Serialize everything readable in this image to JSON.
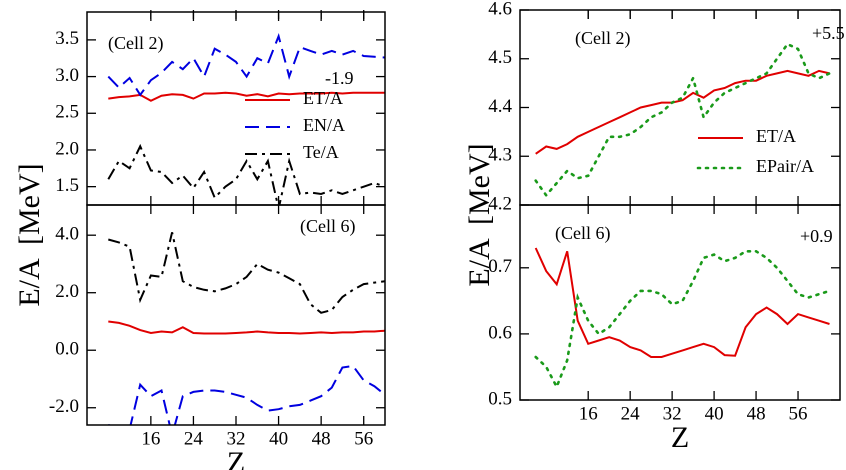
{
  "chart_data": [
    {
      "type": "line",
      "ylabel": "E/A  [MeV]",
      "annotations": [
        "(Cell 2)",
        "-1.9"
      ],
      "x": [
        8,
        10,
        12,
        14,
        16,
        18,
        20,
        22,
        24,
        26,
        28,
        30,
        32,
        34,
        36,
        38,
        40,
        42,
        44,
        46,
        48,
        50,
        52,
        54,
        56,
        58,
        60
      ],
      "xlim": [
        4,
        60
      ],
      "ylim": [
        1.25,
        3.88
      ],
      "yticks": [
        1.5,
        {
          "value": 2,
          "label": "2.0"
        },
        2.5,
        {
          "value": 3,
          "label": "3.0"
        },
        3.5
      ],
      "series": [
        {
          "name": "ET/A",
          "color": "#e00000",
          "line_style": "solid",
          "values": [
            2.7,
            2.72,
            2.73,
            2.75,
            2.67,
            2.74,
            2.76,
            2.75,
            2.7,
            2.77,
            2.77,
            2.78,
            2.77,
            2.74,
            2.76,
            2.73,
            2.77,
            2.76,
            2.77,
            2.77,
            2.77,
            2.78,
            2.77,
            2.78,
            2.78,
            2.78,
            2.78
          ]
        },
        {
          "name": "EN/A",
          "color": "#0000e0",
          "line_style": "dashed",
          "values": [
            3.0,
            2.85,
            2.98,
            2.75,
            2.95,
            3.05,
            3.2,
            3.1,
            3.25,
            3.0,
            3.38,
            3.3,
            3.2,
            3.0,
            3.25,
            3.18,
            3.55,
            3.0,
            3.4,
            3.35,
            3.3,
            3.35,
            3.3,
            3.35,
            3.28,
            3.27,
            3.26
          ]
        },
        {
          "name": "Te/A",
          "color": "#000000",
          "line_style": "dashdot",
          "values": [
            1.6,
            1.85,
            1.75,
            2.05,
            1.72,
            1.7,
            1.55,
            1.65,
            1.48,
            1.7,
            1.35,
            1.5,
            1.6,
            1.85,
            1.6,
            1.85,
            1.2,
            1.85,
            1.4,
            1.42,
            1.4,
            1.45,
            1.4,
            1.45,
            1.5,
            1.55,
            1.5
          ]
        }
      ]
    },
    {
      "type": "line",
      "xlabel": "Z",
      "annotations": [
        "(Cell 6)"
      ],
      "x": [
        8,
        10,
        12,
        14,
        16,
        18,
        20,
        22,
        24,
        26,
        28,
        30,
        32,
        34,
        36,
        38,
        40,
        42,
        44,
        46,
        48,
        50,
        52,
        54,
        56,
        58,
        60
      ],
      "xlim": [
        4,
        60
      ],
      "ylim": [
        -2.6,
        5.05
      ],
      "xticks": [
        16,
        24,
        32,
        40,
        48,
        56
      ],
      "yticks": [
        {
          "value": -2,
          "label": "-2.0"
        },
        {
          "value": 0,
          "label": "0.0"
        },
        {
          "value": 2,
          "label": "2.0"
        },
        {
          "value": 4,
          "label": "4.0"
        }
      ],
      "series": [
        {
          "color": "#e00000",
          "line_style": "solid",
          "values": [
            1.0,
            0.95,
            0.85,
            0.7,
            0.6,
            0.65,
            0.62,
            0.8,
            0.6,
            0.58,
            0.58,
            0.58,
            0.6,
            0.62,
            0.65,
            0.62,
            0.6,
            0.6,
            0.58,
            0.6,
            0.62,
            0.6,
            0.62,
            0.62,
            0.65,
            0.65,
            0.68
          ]
        },
        {
          "color": "#0000e0",
          "line_style": "dashed",
          "values": [
            -2.6,
            -2.7,
            -2.75,
            -1.2,
            -1.6,
            -1.4,
            -2.95,
            -1.6,
            -1.45,
            -1.4,
            -1.4,
            -1.45,
            -1.55,
            -1.65,
            -1.9,
            -2.1,
            -2.05,
            -1.95,
            -1.9,
            -1.75,
            -1.6,
            -1.3,
            -0.6,
            -0.55,
            -1.05,
            -1.25,
            -1.55
          ]
        },
        {
          "color": "#000000",
          "line_style": "dashdot",
          "values": [
            3.85,
            3.75,
            3.6,
            1.75,
            2.6,
            2.55,
            4.1,
            2.4,
            2.2,
            2.1,
            2.05,
            2.15,
            2.3,
            2.55,
            3.0,
            2.8,
            2.7,
            2.5,
            2.3,
            1.6,
            1.3,
            1.4,
            1.85,
            2.1,
            2.3,
            2.35,
            2.4
          ]
        }
      ]
    },
    {
      "type": "line",
      "ylabel": "E/A  [MeV]",
      "annotations": [
        "(Cell 2)",
        "+5.5"
      ],
      "x": [
        6,
        8,
        10,
        12,
        14,
        16,
        18,
        20,
        22,
        24,
        26,
        28,
        30,
        32,
        34,
        36,
        38,
        40,
        42,
        44,
        46,
        48,
        50,
        52,
        54,
        56,
        58,
        60,
        62
      ],
      "xlim": [
        3,
        64
      ],
      "ylim": [
        4.2,
        4.6
      ],
      "yticks": [
        4.2,
        4.3,
        4.4,
        4.5,
        4.6
      ],
      "series": [
        {
          "name": "ET/A",
          "color": "#e00000",
          "line_style": "solid",
          "values": [
            4.305,
            4.32,
            4.315,
            4.325,
            4.34,
            4.35,
            4.36,
            4.37,
            4.38,
            4.39,
            4.4,
            4.405,
            4.41,
            4.41,
            4.415,
            4.43,
            4.42,
            4.435,
            4.44,
            4.45,
            4.455,
            4.455,
            4.465,
            4.47,
            4.475,
            4.47,
            4.465,
            4.475,
            4.47
          ]
        },
        {
          "name": "EPair/A",
          "color": "#1a9a1a",
          "line_style": "dotted",
          "values": [
            4.25,
            4.22,
            4.245,
            4.27,
            4.255,
            4.26,
            4.3,
            4.34,
            4.34,
            4.345,
            4.36,
            4.38,
            4.39,
            4.41,
            4.42,
            4.46,
            4.38,
            4.41,
            4.43,
            4.44,
            4.45,
            4.46,
            4.47,
            4.5,
            4.53,
            4.52,
            4.47,
            4.46,
            4.47
          ]
        }
      ]
    },
    {
      "type": "line",
      "xlabel": "Z",
      "annotations": [
        "(Cell 6)",
        "+0.9"
      ],
      "x": [
        6,
        8,
        10,
        12,
        14,
        16,
        18,
        20,
        22,
        24,
        26,
        28,
        30,
        32,
        34,
        36,
        38,
        40,
        42,
        44,
        46,
        48,
        50,
        52,
        54,
        56,
        58,
        60,
        62
      ],
      "xlim": [
        3,
        64
      ],
      "ylim": [
        0.5,
        0.795
      ],
      "xticks": [
        16,
        24,
        32,
        40,
        48,
        56
      ],
      "yticks": [
        0.5,
        0.6,
        0.7
      ],
      "series": [
        {
          "color": "#e00000",
          "line_style": "solid",
          "values": [
            0.73,
            0.695,
            0.675,
            0.725,
            0.62,
            0.585,
            0.59,
            0.595,
            0.59,
            0.58,
            0.575,
            0.565,
            0.565,
            0.57,
            0.575,
            0.58,
            0.585,
            0.58,
            0.568,
            0.567,
            0.61,
            0.63,
            0.64,
            0.63,
            0.615,
            0.63,
            0.625,
            0.62,
            0.615
          ]
        },
        {
          "color": "#1a9a1a",
          "line_style": "dotted",
          "values": [
            0.565,
            0.55,
            0.52,
            0.56,
            0.655,
            0.62,
            0.6,
            0.61,
            0.63,
            0.65,
            0.665,
            0.665,
            0.66,
            0.645,
            0.65,
            0.68,
            0.715,
            0.72,
            0.71,
            0.715,
            0.725,
            0.725,
            0.715,
            0.7,
            0.68,
            0.66,
            0.655,
            0.66,
            0.665
          ]
        }
      ]
    }
  ]
}
